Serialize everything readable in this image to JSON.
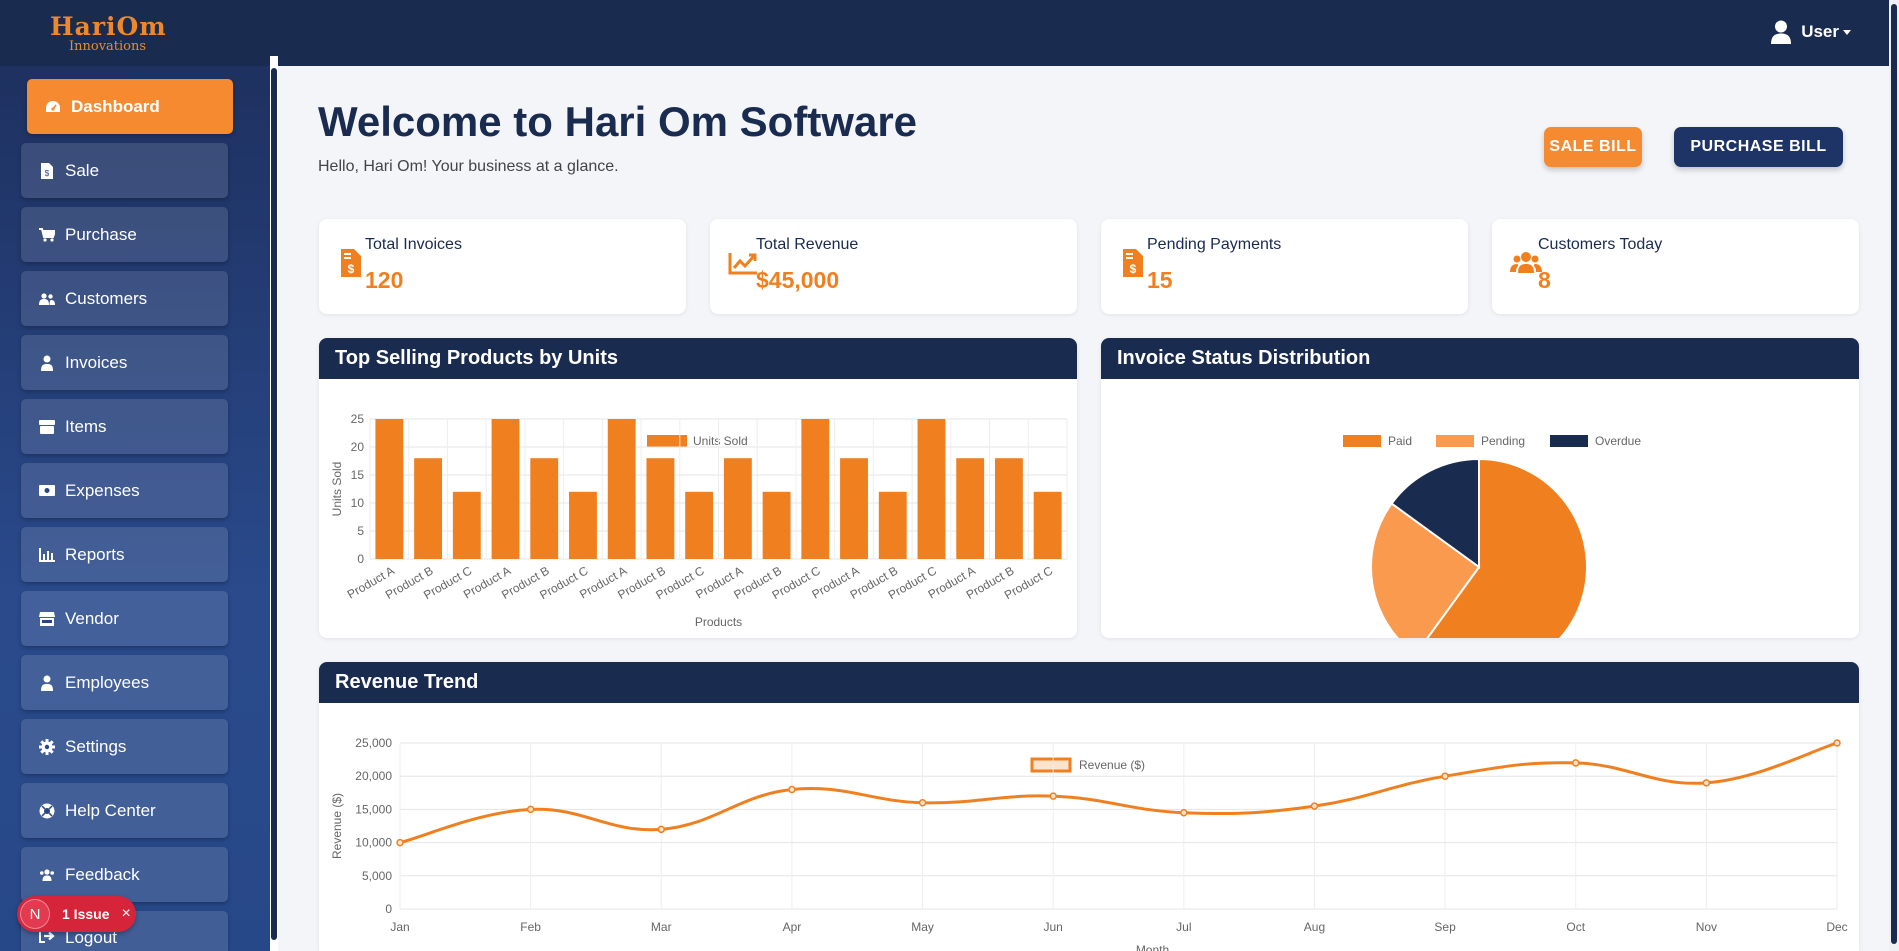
{
  "brand": {
    "logo_main": "HariOm",
    "logo_sub": "Innovations"
  },
  "topbar": {
    "user_label": "User"
  },
  "sidebar": {
    "items": [
      {
        "label": "Dashboard",
        "icon": "gauge-icon",
        "active": true
      },
      {
        "label": "Sale",
        "icon": "receipt-icon"
      },
      {
        "label": "Purchase",
        "icon": "cart-icon"
      },
      {
        "label": "Customers",
        "icon": "users-icon"
      },
      {
        "label": "Invoices",
        "icon": "user-tie-icon"
      },
      {
        "label": "Items",
        "icon": "box-icon"
      },
      {
        "label": "Expenses",
        "icon": "money-icon"
      },
      {
        "label": "Reports",
        "icon": "bar-chart-icon"
      },
      {
        "label": "Vendor",
        "icon": "store-icon"
      },
      {
        "label": "Employees",
        "icon": "user-tie-icon"
      },
      {
        "label": "Settings",
        "icon": "gear-icon"
      },
      {
        "label": "Help Center",
        "icon": "lifebuoy-icon"
      },
      {
        "label": "Feedback",
        "icon": "users-icon"
      },
      {
        "label": "Logout",
        "icon": "logout-icon"
      }
    ]
  },
  "issue_badge": {
    "avatar_letter": "N",
    "label": "1 Issue",
    "close": "×"
  },
  "header": {
    "title": "Welcome to Hari Om Software",
    "subtitle": "Hello, Hari Om! Your business at a glance.",
    "sale_button": "SALE BILL",
    "purchase_button": "PURCHASE BILL"
  },
  "stats": [
    {
      "label": "Total Invoices",
      "value": "120",
      "icon": "invoice-dollar-icon"
    },
    {
      "label": "Total Revenue",
      "value": "$45,000",
      "icon": "trend-up-icon"
    },
    {
      "label": "Pending Payments",
      "value": "15",
      "icon": "invoice-dollar-icon"
    },
    {
      "label": "Customers Today",
      "value": "8",
      "icon": "users-icon"
    }
  ],
  "colors": {
    "accent_orange": "#f0801f",
    "light_orange": "#f99a4f",
    "navy": "#1a2b50"
  },
  "chart_data": [
    {
      "type": "bar",
      "title": "Top Selling Products by Units",
      "categories": [
        "Product A",
        "Product B",
        "Product C",
        "Product A",
        "Product B",
        "Product C",
        "Product A",
        "Product B",
        "Product C",
        "Product A",
        "Product B",
        "Product C",
        "Product A",
        "Product B",
        "Product C",
        "Product A",
        "Product B",
        "Product C"
      ],
      "series": [
        {
          "name": "Units Sold",
          "values": [
            25,
            18,
            12,
            25,
            18,
            12,
            25,
            18,
            12,
            18,
            12,
            25,
            18,
            12,
            25,
            18,
            18,
            12
          ]
        }
      ],
      "xlabel": "Products",
      "ylabel": "Units Sold",
      "ylim": [
        0,
        25
      ],
      "yticks": [
        "0",
        "5",
        "10",
        "15",
        "20",
        "25"
      ],
      "legend": "top",
      "grid": true
    },
    {
      "type": "pie",
      "title": "Invoice Status Distribution",
      "labels": [
        "Paid",
        "Pending",
        "Overdue"
      ],
      "values": [
        60,
        25,
        15
      ],
      "colors": [
        "#f0801f",
        "#f99a4f",
        "#1a2b50"
      ],
      "legend": "top"
    },
    {
      "type": "line",
      "title": "Revenue Trend",
      "categories": [
        "Jan",
        "Feb",
        "Mar",
        "Apr",
        "May",
        "Jun",
        "Jul",
        "Aug",
        "Sep",
        "Oct",
        "Nov",
        "Dec"
      ],
      "series": [
        {
          "name": "Revenue ($)",
          "values": [
            10000,
            15000,
            12000,
            18000,
            16000,
            17000,
            14500,
            15500,
            20000,
            22000,
            19000,
            25000
          ]
        }
      ],
      "xlabel": "Month",
      "ylabel": "Revenue ($)",
      "ylim": [
        0,
        25000
      ],
      "yticks": [
        "0",
        "5,000",
        "10,000",
        "15,000",
        "20,000",
        "25,000"
      ],
      "legend": "top",
      "grid": true
    }
  ]
}
